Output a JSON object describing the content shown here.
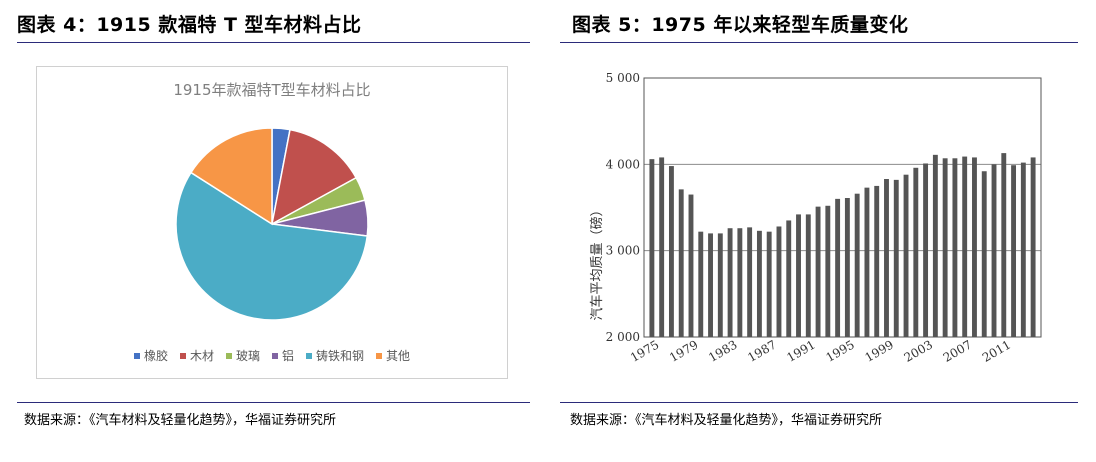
{
  "figures": [
    {
      "caption": "图表 4：1915 款福特 T 型车材料占比",
      "source": "数据来源：《汽车材料及轻量化趋势》，华福证券研究所"
    },
    {
      "caption": "图表 5：1975 年以来轻型车质量变化",
      "source": "数据来源：《汽车材料及轻量化趋势》，华福证券研究所"
    }
  ],
  "chart_data": [
    {
      "type": "pie",
      "title": "1915年款福特T型车材料占比",
      "legend_position": "bottom",
      "categories": [
        "橡胶",
        "木材",
        "玻璃",
        "铝",
        "铸铁和钢",
        "其他"
      ],
      "values": [
        3,
        14,
        4,
        6,
        57,
        16
      ],
      "colors": [
        "#4472c4",
        "#c0504d",
        "#9bbb59",
        "#8064a2",
        "#4bacc6",
        "#f79646"
      ]
    },
    {
      "type": "bar",
      "title": "",
      "xlabel": "",
      "ylabel": "汽车平均质量（磅）",
      "ylim": [
        2000,
        5000
      ],
      "yticks": [
        "2 000",
        "3 000",
        "4 000",
        "5 000"
      ],
      "ytick_values": [
        2000,
        3000,
        4000,
        5000
      ],
      "xtick_labels": [
        "1975",
        "1979",
        "1983",
        "1987",
        "1991",
        "1995",
        "1999",
        "2003",
        "2007",
        "2011"
      ],
      "grid": "horizontal at 3000 and 4000",
      "color": "#555555",
      "categories": [
        1975,
        1976,
        1977,
        1978,
        1979,
        1980,
        1981,
        1982,
        1983,
        1984,
        1985,
        1986,
        1987,
        1988,
        1989,
        1990,
        1991,
        1992,
        1993,
        1994,
        1995,
        1996,
        1997,
        1998,
        1999,
        2000,
        2001,
        2002,
        2003,
        2004,
        2005,
        2006,
        2007,
        2008,
        2009,
        2010,
        2011,
        2012,
        2013,
        2014
      ],
      "values": [
        4060,
        4080,
        3980,
        3710,
        3650,
        3220,
        3200,
        3200,
        3260,
        3260,
        3270,
        3230,
        3220,
        3280,
        3350,
        3420,
        3420,
        3510,
        3520,
        3600,
        3610,
        3660,
        3730,
        3750,
        3830,
        3820,
        3880,
        3960,
        4010,
        4110,
        4070,
        4070,
        4090,
        4080,
        3920,
        4000,
        4130,
        3990,
        4020,
        4080
      ]
    }
  ]
}
